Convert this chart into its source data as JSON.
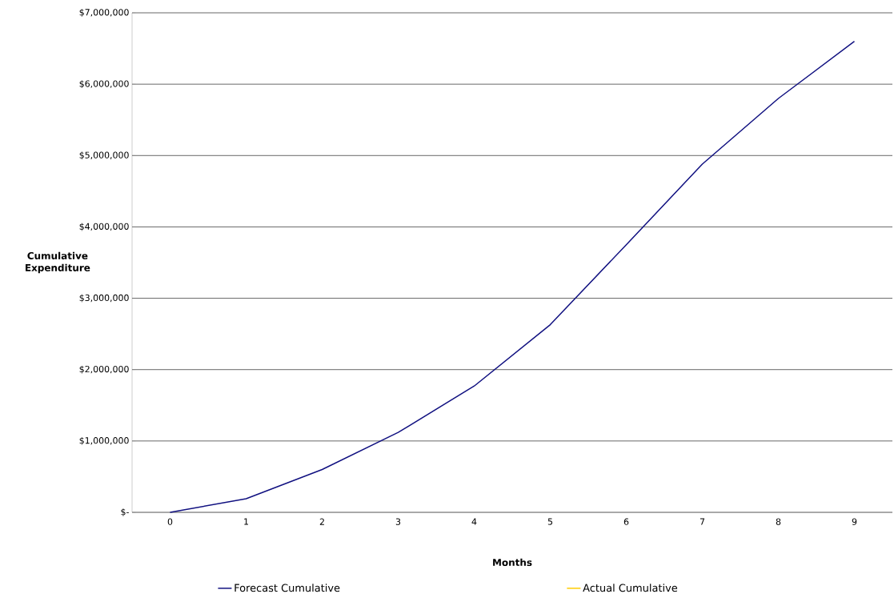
{
  "chart_data": {
    "type": "line",
    "xlabel": "Months",
    "ylabel": "Cumulative Expenditure",
    "categories": [
      "0",
      "1",
      "2",
      "3",
      "4",
      "5",
      "6",
      "7",
      "8",
      "9"
    ],
    "series": [
      {
        "name": "Forecast Cumulative",
        "color": "#101080",
        "values": [
          0,
          190000,
          600000,
          1120000,
          1770000,
          2630000,
          3750000,
          4880000,
          5800000,
          6600000
        ]
      },
      {
        "name": "Actual Cumulative",
        "color": "#ffcc00",
        "values": [
          null,
          null,
          null,
          null,
          null,
          null,
          null,
          null,
          null,
          null
        ]
      }
    ],
    "ylim": [
      0,
      7000000
    ],
    "yticks": [
      {
        "value": 0,
        "label": "$-"
      },
      {
        "value": 1000000,
        "label": "$1,000,000"
      },
      {
        "value": 2000000,
        "label": "$2,000,000"
      },
      {
        "value": 3000000,
        "label": "$3,000,000"
      },
      {
        "value": 4000000,
        "label": "$4,000,000"
      },
      {
        "value": 5000000,
        "label": "$5,000,000"
      },
      {
        "value": 6000000,
        "label": "$6,000,000"
      },
      {
        "value": 7000000,
        "label": "$7,000,000"
      }
    ],
    "grid": "y",
    "legend": "bottom",
    "marker": "none",
    "line_style": "solid"
  }
}
